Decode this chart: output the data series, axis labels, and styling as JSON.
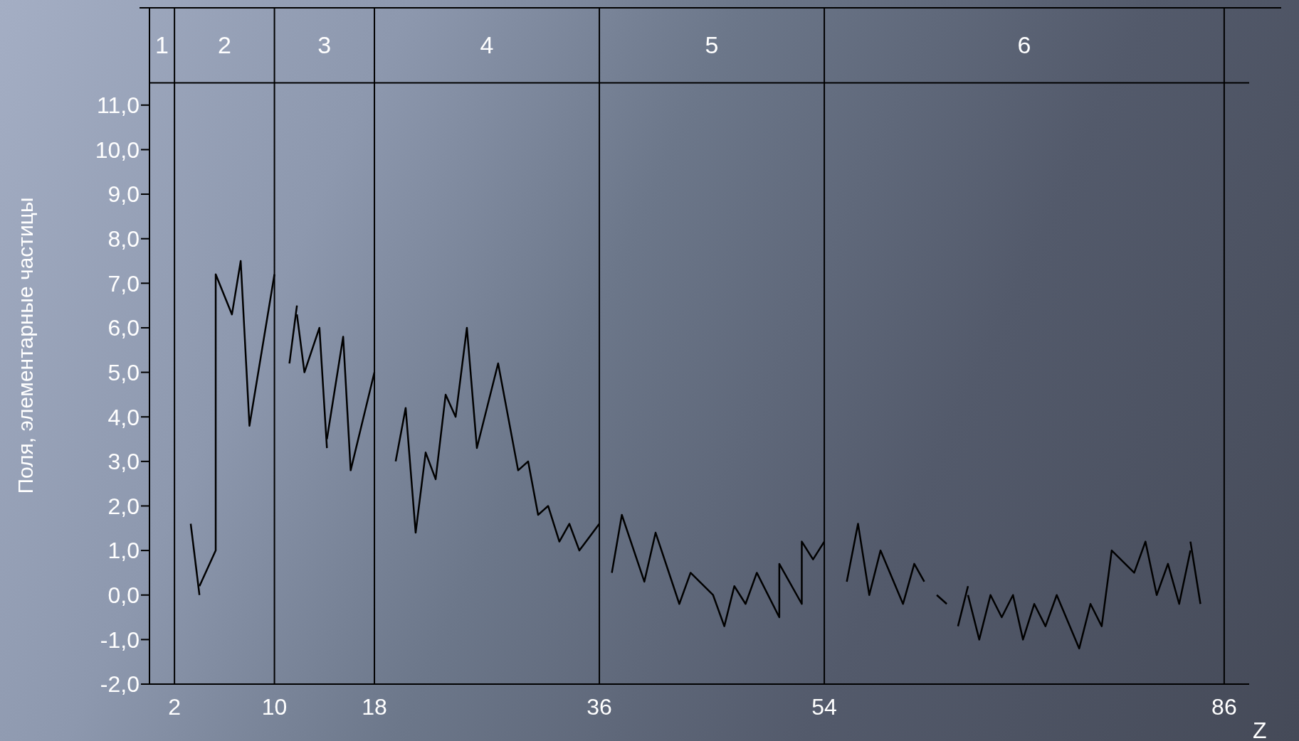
{
  "chart_data": {
    "type": "line",
    "xlabel": "Z",
    "ylabel": "Поля, элементарные частицы",
    "xlim": [
      0,
      88
    ],
    "xticks": [
      2,
      10,
      18,
      36,
      54,
      86
    ],
    "annotations": [
      "1",
      "2",
      "3",
      "4",
      "5",
      "6"
    ],
    "ylim": [
      -2,
      13.2
    ],
    "yticks": [
      {
        "value": -2,
        "label": "-2,0"
      },
      {
        "value": -1,
        "label": "-1,0"
      },
      {
        "value": 0,
        "label": "0,0"
      },
      {
        "value": 1,
        "label": "1,0"
      },
      {
        "value": 2,
        "label": "2,0"
      },
      {
        "value": 3,
        "label": "3,0"
      },
      {
        "value": 4,
        "label": "4,0"
      },
      {
        "value": 5,
        "label": "5,0"
      },
      {
        "value": 6,
        "label": "6,0"
      },
      {
        "value": 7,
        "label": "7,0"
      },
      {
        "value": 8,
        "label": "8,0"
      },
      {
        "value": 9,
        "label": "9,0"
      },
      {
        "value": 10,
        "label": "10,0"
      },
      {
        "value": 11,
        "label": "11,0"
      }
    ],
    "grid": false,
    "marker": "none",
    "line_style": "solid",
    "ref_lines": [
      {
        "axis": "y",
        "value": 11.5,
        "color": "#000000"
      },
      {
        "axis": "x",
        "value": 2,
        "color": "#000000"
      },
      {
        "axis": "x",
        "value": 10,
        "color": "#000000"
      },
      {
        "axis": "x",
        "value": 18,
        "color": "#000000"
      },
      {
        "axis": "x",
        "value": 36,
        "color": "#000000"
      },
      {
        "axis": "x",
        "value": 54,
        "color": "#000000"
      },
      {
        "axis": "x",
        "value": 86,
        "color": "#000000"
      }
    ],
    "series": [
      {
        "color": "#000000",
        "x": [
          3.3,
          4.0
        ],
        "values": [
          1.6,
          0.0
        ]
      },
      {
        "color": "#000000",
        "x": [
          4.0,
          5.3,
          5.3,
          6.6,
          7.3,
          8.0,
          10
        ],
        "values": [
          0.2,
          1.0,
          7.2,
          6.3,
          7.5,
          3.8,
          7.2
        ]
      },
      {
        "color": "#000000",
        "x": [
          11.2,
          11.8
        ],
        "values": [
          5.2,
          6.5
        ]
      },
      {
        "color": "#000000",
        "x": [
          11.8,
          12.4,
          13.6,
          14.2
        ],
        "values": [
          6.3,
          5.0,
          6.0,
          3.3
        ]
      },
      {
        "color": "#000000",
        "x": [
          14.2,
          15.5,
          16.1,
          18
        ],
        "values": [
          3.5,
          5.8,
          2.8,
          5.0
        ]
      },
      {
        "color": "#000000",
        "x": [
          19.7,
          20.5,
          21.3,
          22.1,
          22.9,
          23.7,
          24.5,
          25.4,
          26.2,
          27.9,
          29.5,
          30.3,
          31.1,
          31.9,
          32.8,
          33.6,
          34.4,
          36
        ],
        "values": [
          3.0,
          4.2,
          1.4,
          3.2,
          2.6,
          4.5,
          4.0,
          6.0,
          3.3,
          5.2,
          2.8,
          3.0,
          1.8,
          2.0,
          1.2,
          1.6,
          1.0,
          1.6
        ]
      },
      {
        "color": "#000000",
        "x": [
          37.0,
          37.8,
          39.6,
          40.5,
          42.4,
          43.3,
          45.1,
          46.0,
          46.8,
          47.7,
          48.6,
          50.4,
          50.4,
          52.2,
          52.2,
          53.1,
          54
        ],
        "values": [
          0.5,
          1.8,
          0.3,
          1.4,
          -0.2,
          0.5,
          0.0,
          -0.7,
          0.2,
          -0.2,
          0.5,
          -0.5,
          0.7,
          -0.2,
          1.2,
          0.8,
          1.2
        ]
      },
      {
        "color": "#000000",
        "x": [
          55.8,
          56.7,
          57.6,
          58.5,
          60.3,
          61.2,
          62.0
        ],
        "values": [
          0.3,
          1.6,
          0.0,
          1.0,
          -0.2,
          0.7,
          0.3
        ]
      },
      {
        "color": "#000000",
        "x": [
          63.0,
          63.8
        ],
        "values": [
          0.0,
          -0.2
        ]
      },
      {
        "color": "#000000",
        "x": [
          64.7,
          65.5
        ],
        "values": [
          -0.7,
          0.2
        ]
      },
      {
        "color": "#000000",
        "x": [
          65.5,
          66.4,
          67.3,
          68.2,
          69.1,
          69.9,
          70.8,
          71.7,
          72.6,
          74.4,
          75.3,
          76.2,
          77.0,
          78.8,
          79.7,
          80.6,
          81.5,
          82.4,
          83.3
        ],
        "values": [
          0.0,
          -1.0,
          0.0,
          -0.5,
          0.0,
          -1.0,
          -0.2,
          -0.7,
          0.0,
          -1.2,
          -0.2,
          -0.7,
          1.0,
          0.5,
          1.2,
          0.0,
          0.7,
          -0.2,
          1.0
        ]
      },
      {
        "color": "#000000",
        "x": [
          83.3,
          84.1
        ],
        "values": [
          1.2,
          -0.2
        ]
      }
    ]
  }
}
